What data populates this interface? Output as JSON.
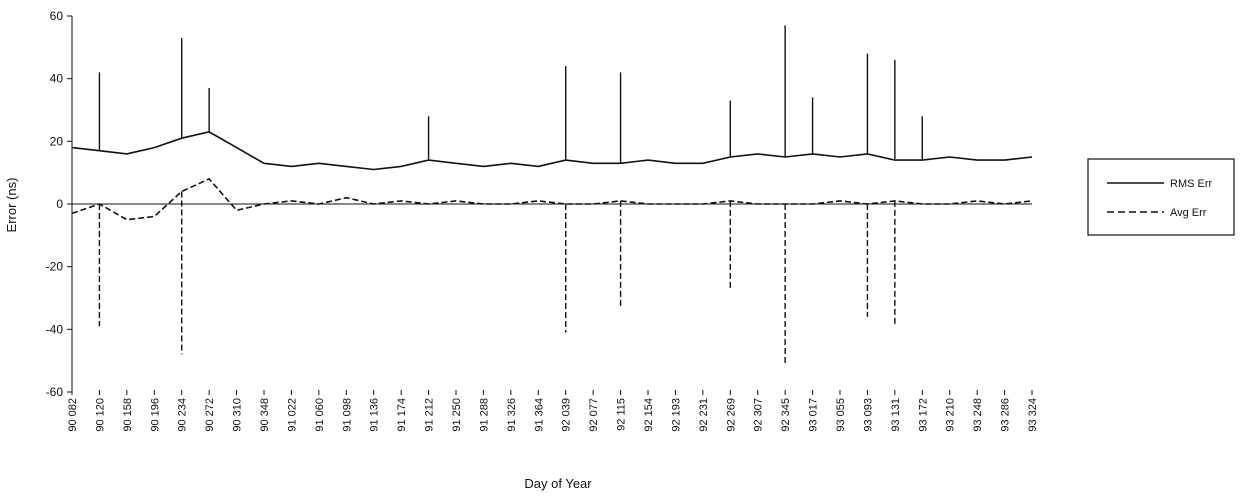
{
  "chart_data": {
    "type": "line",
    "title": "",
    "xlabel": "Day of Year",
    "ylabel": "Error (ns)",
    "ylim": [
      -60,
      60
    ],
    "yticks": [
      -60,
      -40,
      -20,
      0,
      20,
      40,
      60
    ],
    "grid": false,
    "legend_position": "right",
    "categories": [
      "90 082",
      "90 120",
      "90 158",
      "90 196",
      "90 234",
      "90 272",
      "90 310",
      "90 348",
      "91 022",
      "91 060",
      "91 098",
      "91 136",
      "91 174",
      "91 212",
      "91 250",
      "91 288",
      "91 326",
      "91 364",
      "92 039",
      "92 077",
      "92 115",
      "92 154",
      "92 193",
      "92 231",
      "92 269",
      "92 307",
      "92 345",
      "93 017",
      "93 055",
      "93 093",
      "93 131",
      "93 172",
      "93 210",
      "93 248",
      "93 286",
      "93 324"
    ],
    "series": [
      {
        "name": "RMS Err",
        "style": "solid",
        "color": "#111111",
        "values": [
          18,
          17,
          16,
          18,
          21,
          23,
          18,
          13,
          12,
          13,
          12,
          11,
          12,
          14,
          13,
          12,
          13,
          12,
          14,
          13,
          13,
          14,
          13,
          13,
          15,
          16,
          15,
          16,
          15,
          16,
          14,
          14,
          15,
          14,
          14,
          15
        ],
        "spikes": [
          {
            "category": "90 120",
            "value": 42
          },
          {
            "category": "90 234",
            "value": 53
          },
          {
            "category": "90 272",
            "value": 37
          },
          {
            "category": "91 212",
            "value": 28
          },
          {
            "category": "92 039",
            "value": 44
          },
          {
            "category": "92 115",
            "value": 42
          },
          {
            "category": "92 269",
            "value": 33
          },
          {
            "category": "92 345",
            "value": 57
          },
          {
            "category": "93 017",
            "value": 34
          },
          {
            "category": "93 093",
            "value": 48
          },
          {
            "category": "93 131",
            "value": 46
          },
          {
            "category": "93 172",
            "value": 28
          }
        ]
      },
      {
        "name": "Avg Err",
        "style": "dashed",
        "color": "#111111",
        "values": [
          -3,
          0,
          -5,
          -4,
          4,
          8,
          -2,
          0,
          1,
          0,
          2,
          0,
          1,
          0,
          1,
          0,
          0,
          1,
          0,
          0,
          1,
          0,
          0,
          0,
          1,
          0,
          0,
          0,
          1,
          0,
          1,
          0,
          0,
          1,
          0,
          1
        ],
        "spikes": [
          {
            "category": "90 120",
            "value": -39
          },
          {
            "category": "90 234",
            "value": -48
          },
          {
            "category": "92 039",
            "value": -41
          },
          {
            "category": "92 115",
            "value": -33
          },
          {
            "category": "92 269",
            "value": -27
          },
          {
            "category": "92 345",
            "value": -51
          },
          {
            "category": "93 093",
            "value": -36
          },
          {
            "category": "93 131",
            "value": -39
          }
        ]
      }
    ]
  }
}
